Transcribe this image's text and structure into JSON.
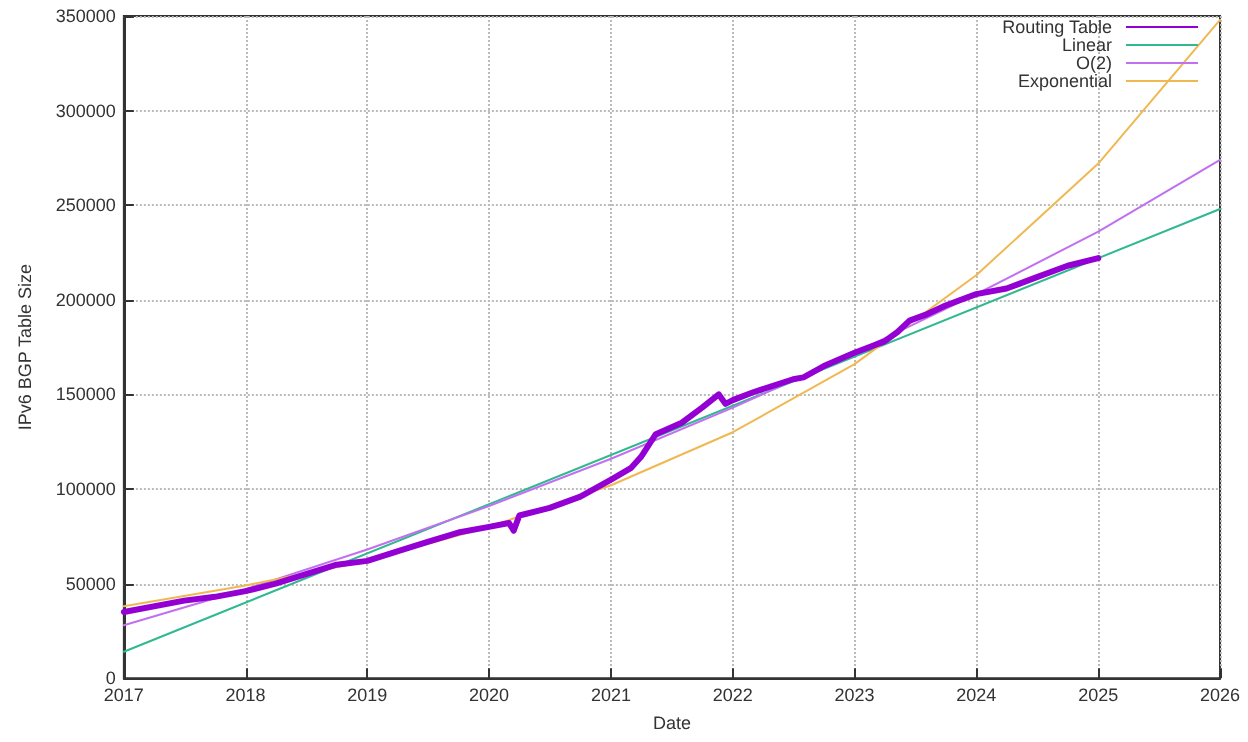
{
  "chart_data": {
    "type": "line",
    "xlabel": "Date",
    "ylabel": "IPv6 BGP Table Size",
    "xlim": [
      "2017",
      "2026"
    ],
    "xticks": [
      "2017",
      "2018",
      "2019",
      "2020",
      "2021",
      "2022",
      "2023",
      "2024",
      "2025",
      "2026"
    ],
    "ylim": [
      0,
      350000
    ],
    "yticks": [
      0,
      50000,
      100000,
      150000,
      200000,
      250000,
      300000,
      350000
    ],
    "grid": true,
    "legend": "top right",
    "marker": "none",
    "line_style": "solid",
    "series": [
      {
        "name": "Routing Table",
        "color": "#9400d3",
        "x": [
          "2017-01",
          "2017-07",
          "2017-10",
          "2018-01",
          "2018-04",
          "2018-07",
          "2018-10",
          "2019-01",
          "2019-04",
          "2019-07",
          "2019-10",
          "2020-01",
          "2020-03-01",
          "2020-03-15",
          "2020-04-01",
          "2020-07",
          "2020-10",
          "2021-01",
          "2021-03",
          "2021-04",
          "2021-05-15",
          "2021-08",
          "2021-10",
          "2021-11-20",
          "2021-12-10",
          "2022-01",
          "2022-03",
          "2022-07",
          "2022-08",
          "2022-10",
          "2023-01",
          "2023-04",
          "2023-05-10",
          "2023-06-15",
          "2023-08",
          "2023-10",
          "2024-01",
          "2024-04",
          "2024-07",
          "2024-10",
          "2025-01"
        ],
        "values": [
          35000,
          41000,
          43000,
          46000,
          50000,
          55000,
          60000,
          62000,
          67000,
          72000,
          77000,
          80000,
          82000,
          78000,
          86000,
          90000,
          96000,
          105000,
          111000,
          117000,
          129000,
          135000,
          143000,
          150000,
          145000,
          147000,
          151000,
          158000,
          159000,
          165000,
          172000,
          178000,
          183000,
          189000,
          192000,
          197000,
          203000,
          206000,
          212000,
          218000,
          222000
        ]
      },
      {
        "name": "Linear",
        "color": "#30b890",
        "x": [
          "2017",
          "2026"
        ],
        "values": [
          14000,
          248000
        ]
      },
      {
        "name": "O(2)",
        "color": "#c070f0",
        "x": [
          "2017",
          "2018",
          "2019",
          "2020",
          "2021",
          "2022",
          "2023",
          "2024",
          "2025",
          "2026"
        ],
        "values": [
          28000,
          47000,
          68000,
          91000,
          116000,
          143000,
          172000,
          203000,
          236000,
          274000
        ]
      },
      {
        "name": "Exponential",
        "color": "#f0b850",
        "x": [
          "2017",
          "2018",
          "2019",
          "2020",
          "2021",
          "2022",
          "2023",
          "2024",
          "2025",
          "2026"
        ],
        "values": [
          38000,
          49000,
          62000,
          80000,
          102000,
          130000,
          166000,
          213000,
          272000,
          348000
        ]
      }
    ]
  }
}
